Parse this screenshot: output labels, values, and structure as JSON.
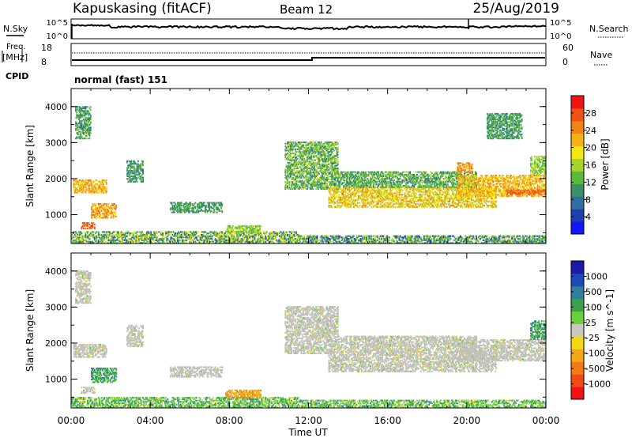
{
  "header": {
    "station": "Kapuskasing (fitACF)",
    "beam": "Beam 12",
    "date": "25/Aug/2019"
  },
  "summary_panel": {
    "nsky_label": "N.Sky",
    "nsky_ticks": [
      "10^5",
      "10^0"
    ],
    "nsearch_label": "N.Search",
    "nsearch_ticks": [
      "10^5",
      "10^0"
    ],
    "freq_label_line1": "Freq.",
    "freq_label_line2": "[MHz]",
    "freq_ticks": [
      "18",
      "8"
    ],
    "nave_label": "Nave",
    "nave_ticks": [
      "60",
      "0"
    ],
    "cpid_label": "CPID",
    "cpid_value": "normal (fast) 151"
  },
  "colors": {
    "power_scale": [
      "#1414ff",
      "#1e3fb0",
      "#2e6fa0",
      "#3a8f6a",
      "#5cb83a",
      "#a6d22a",
      "#f2e614",
      "#f2b414",
      "#f28214",
      "#f25014",
      "#f21414"
    ],
    "velocity_scale": [
      "#1a1aa8",
      "#1e4ab8",
      "#2f7f9c",
      "#3aa04a",
      "#6ad03a",
      "#c8c8c0",
      "#f2d814",
      "#f2a814",
      "#f27a14",
      "#f24a14",
      "#f21414"
    ],
    "ground_scatter": "#c0c0b8"
  },
  "chart_data": [
    {
      "type": "heatmap",
      "title": "",
      "xlabel": "",
      "ylabel": "Slant Range [km]",
      "ylim": [
        200,
        4500
      ],
      "x_ticks": [],
      "y_ticks": [
        "1000",
        "2000",
        "3000",
        "4000"
      ],
      "colorbar_label": "Power [dB]",
      "colorbar_ticks": [
        "4",
        "8",
        "12",
        "16",
        "20",
        "24",
        "28"
      ],
      "colorbar_range": [
        0,
        30
      ],
      "regions": [
        {
          "t0": 0.0,
          "t1": 11.5,
          "r0": 200,
          "r1": 520,
          "value": 12,
          "spread": 16
        },
        {
          "t0": 11.5,
          "t1": 24.0,
          "r0": 200,
          "r1": 420,
          "value": 10,
          "spread": 14
        },
        {
          "t0": 0.1,
          "t1": 1.8,
          "r0": 1600,
          "r1": 1950,
          "value": 21,
          "spread": 6
        },
        {
          "t0": 1.0,
          "t1": 2.3,
          "r0": 900,
          "r1": 1300,
          "value": 22,
          "spread": 8
        },
        {
          "t0": 0.5,
          "t1": 1.2,
          "r0": 600,
          "r1": 780,
          "value": 27,
          "spread": 4
        },
        {
          "t0": 0.2,
          "t1": 1.0,
          "r0": 3100,
          "r1": 4000,
          "value": 10,
          "spread": 8
        },
        {
          "t0": 2.8,
          "t1": 3.6,
          "r0": 1900,
          "r1": 2500,
          "value": 9,
          "spread": 8
        },
        {
          "t0": 5.0,
          "t1": 7.6,
          "r0": 1050,
          "r1": 1350,
          "value": 10,
          "spread": 6
        },
        {
          "t0": 7.8,
          "t1": 9.6,
          "r0": 480,
          "r1": 700,
          "value": 14,
          "spread": 6
        },
        {
          "t0": 10.8,
          "t1": 13.5,
          "r0": 1700,
          "r1": 3000,
          "value": 12,
          "spread": 10
        },
        {
          "t0": 13.0,
          "t1": 21.5,
          "r0": 1200,
          "r1": 1750,
          "value": 19,
          "spread": 10
        },
        {
          "t0": 13.5,
          "t1": 20.5,
          "r0": 1750,
          "r1": 2200,
          "value": 11,
          "spread": 8
        },
        {
          "t0": 19.5,
          "t1": 24.0,
          "r0": 1500,
          "r1": 2100,
          "value": 21,
          "spread": 8
        },
        {
          "t0": 22.0,
          "t1": 24.0,
          "r0": 1550,
          "r1": 1700,
          "value": 26,
          "spread": 4
        },
        {
          "t0": 23.2,
          "t1": 24.0,
          "r0": 2100,
          "r1": 2600,
          "value": 14,
          "spread": 6
        },
        {
          "t0": 21.0,
          "t1": 22.8,
          "r0": 3100,
          "r1": 3800,
          "value": 10,
          "spread": 6
        },
        {
          "t0": 19.5,
          "t1": 20.3,
          "r0": 2150,
          "r1": 2450,
          "value": 23,
          "spread": 4
        }
      ]
    },
    {
      "type": "heatmap",
      "title": "",
      "xlabel": "Time UT",
      "ylabel": "Slant Range [km]",
      "ylim": [
        200,
        4500
      ],
      "x_ticks": [
        "00:00",
        "04:00",
        "08:00",
        "12:00",
        "16:00",
        "20:00",
        "00:00"
      ],
      "y_ticks": [
        "1000",
        "2000",
        "3000",
        "4000"
      ],
      "colorbar_label": "Velocity [m s^-1]",
      "colorbar_ticks": [
        "1000",
        "500",
        "100",
        "25",
        "-25",
        "-100",
        "-500",
        "-1000"
      ],
      "regions": [
        {
          "t0": 0.0,
          "t1": 11.5,
          "r0": 200,
          "r1": 500,
          "value": "pos-low"
        },
        {
          "t0": 11.5,
          "t1": 24.0,
          "r0": 200,
          "r1": 400,
          "value": "pos-low"
        },
        {
          "t0": 7.8,
          "t1": 9.6,
          "r0": 480,
          "r1": 700,
          "value": "neg-mid"
        },
        {
          "t0": 0.1,
          "t1": 1.8,
          "r0": 1600,
          "r1": 1950,
          "value": "gs"
        },
        {
          "t0": 1.0,
          "t1": 2.3,
          "r0": 900,
          "r1": 1300,
          "value": "pos-mid"
        },
        {
          "t0": 0.5,
          "t1": 1.2,
          "r0": 600,
          "r1": 780,
          "value": "gs"
        },
        {
          "t0": 0.2,
          "t1": 1.0,
          "r0": 3100,
          "r1": 4000,
          "value": "gs"
        },
        {
          "t0": 2.8,
          "t1": 3.6,
          "r0": 1900,
          "r1": 2500,
          "value": "gs"
        },
        {
          "t0": 5.0,
          "t1": 7.6,
          "r0": 1050,
          "r1": 1350,
          "value": "gs"
        },
        {
          "t0": 10.8,
          "t1": 13.5,
          "r0": 1700,
          "r1": 3000,
          "value": "gs"
        },
        {
          "t0": 13.0,
          "t1": 21.5,
          "r0": 1200,
          "r1": 1750,
          "value": "gs"
        },
        {
          "t0": 13.5,
          "t1": 20.5,
          "r0": 1750,
          "r1": 2200,
          "value": "gs"
        },
        {
          "t0": 19.5,
          "t1": 24.0,
          "r0": 1500,
          "r1": 2100,
          "value": "gs"
        },
        {
          "t0": 23.2,
          "t1": 24.0,
          "r0": 2100,
          "r1": 2600,
          "value": "pos-mid"
        }
      ]
    }
  ]
}
